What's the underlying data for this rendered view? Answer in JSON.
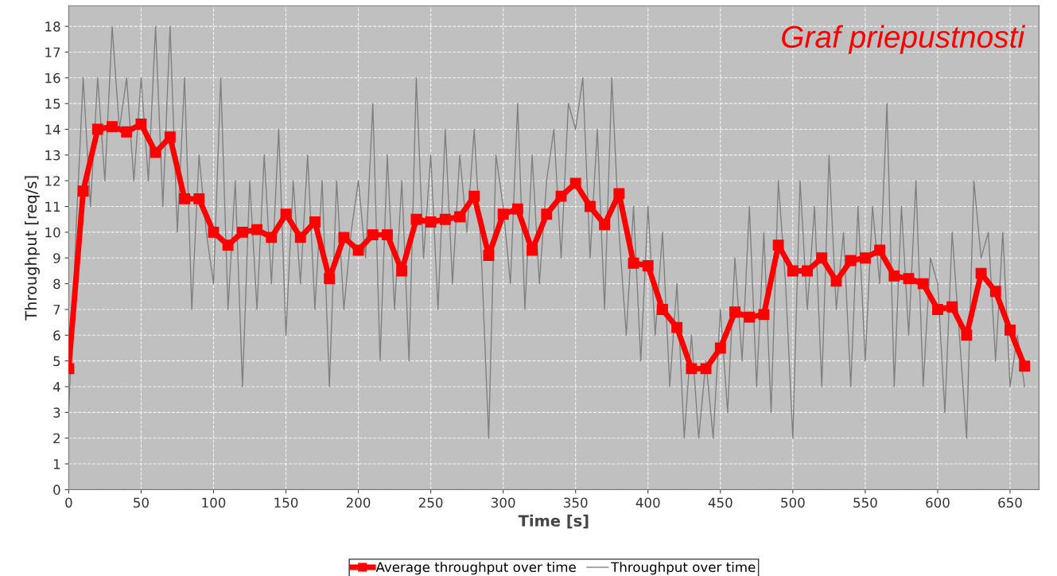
{
  "chart_data": {
    "type": "line",
    "title": "Graf priepustnosti",
    "xlabel": "Time [s]",
    "ylabel": "Throughput [req/s]",
    "xlim": [
      0,
      670
    ],
    "ylim": [
      0,
      18.8
    ],
    "xticks": [
      0,
      50,
      100,
      150,
      200,
      250,
      300,
      350,
      400,
      450,
      500,
      550,
      600,
      650
    ],
    "yticks": [
      0,
      1,
      2,
      3,
      4,
      5,
      6,
      7,
      8,
      9,
      10,
      11,
      12,
      13,
      14,
      15,
      16,
      17,
      18
    ],
    "grid": true,
    "legend": "bottom",
    "line_style": "solid",
    "series": [
      {
        "name": "Average throughput over time",
        "color": "#ff0000",
        "marker": "square",
        "x": [
          0,
          10,
          20,
          30,
          40,
          50,
          60,
          70,
          80,
          90,
          100,
          110,
          120,
          130,
          140,
          150,
          160,
          170,
          180,
          190,
          200,
          210,
          220,
          230,
          240,
          250,
          260,
          270,
          280,
          290,
          300,
          310,
          320,
          330,
          340,
          350,
          360,
          370,
          380,
          390,
          400,
          410,
          420,
          430,
          440,
          450,
          460,
          470,
          480,
          490,
          500,
          510,
          520,
          530,
          540,
          550,
          560,
          570,
          580,
          590,
          600,
          610,
          620,
          630,
          640,
          650,
          660
        ],
        "values": [
          4.7,
          11.6,
          14.0,
          14.1,
          13.9,
          14.2,
          13.1,
          13.7,
          11.3,
          11.3,
          10.0,
          9.5,
          10.0,
          10.1,
          9.8,
          10.7,
          9.8,
          10.4,
          8.2,
          9.8,
          9.3,
          9.9,
          9.9,
          8.5,
          10.5,
          10.4,
          10.5,
          10.6,
          11.4,
          9.1,
          10.7,
          10.9,
          9.3,
          10.7,
          11.4,
          11.9,
          11.0,
          10.3,
          11.5,
          8.8,
          8.7,
          7.0,
          6.3,
          4.7,
          4.7,
          5.5,
          6.9,
          6.7,
          6.8,
          9.5,
          8.5,
          8.5,
          9.0,
          8.1,
          8.9,
          9.0,
          9.3,
          8.3,
          8.2,
          8.0,
          7.0,
          7.1,
          6.0,
          8.4,
          7.7,
          6.2,
          4.8
        ]
      },
      {
        "name": "Throughput over time",
        "color": "#808080",
        "marker": "none",
        "x": [
          0,
          5,
          10,
          15,
          20,
          25,
          30,
          35,
          40,
          45,
          50,
          55,
          60,
          65,
          70,
          75,
          80,
          85,
          90,
          95,
          100,
          105,
          110,
          115,
          120,
          125,
          130,
          135,
          140,
          145,
          150,
          155,
          160,
          165,
          170,
          175,
          180,
          185,
          190,
          195,
          200,
          205,
          210,
          215,
          220,
          225,
          230,
          235,
          240,
          245,
          250,
          255,
          260,
          265,
          270,
          275,
          280,
          285,
          290,
          295,
          300,
          305,
          310,
          315,
          320,
          325,
          330,
          335,
          340,
          345,
          350,
          355,
          360,
          365,
          370,
          375,
          380,
          385,
          390,
          395,
          400,
          405,
          410,
          415,
          420,
          425,
          430,
          435,
          440,
          445,
          450,
          455,
          460,
          465,
          470,
          475,
          480,
          485,
          490,
          495,
          500,
          505,
          510,
          515,
          520,
          525,
          530,
          535,
          540,
          545,
          550,
          555,
          560,
          565,
          570,
          575,
          580,
          585,
          590,
          595,
          600,
          605,
          610,
          615,
          620,
          625,
          630,
          635,
          640,
          645,
          650,
          655,
          660
        ],
        "values": [
          3,
          10,
          16,
          11,
          16,
          12,
          18,
          14,
          16,
          12,
          16,
          12,
          18,
          11,
          18,
          10,
          16,
          7,
          13,
          10,
          8,
          16,
          7,
          12,
          4,
          12,
          7,
          13,
          8,
          14,
          6,
          12,
          8,
          13,
          7,
          12,
          4,
          12,
          7,
          10,
          12,
          9,
          15,
          5,
          13,
          7,
          12,
          5,
          16,
          9,
          13,
          7,
          14,
          8,
          13,
          10,
          14,
          9,
          2,
          13,
          11,
          8,
          15,
          7,
          13,
          8,
          12,
          14,
          9,
          15,
          14,
          16,
          9,
          14,
          7,
          16,
          10,
          6,
          11,
          5,
          11,
          6,
          10,
          4,
          8,
          2,
          6,
          2,
          5,
          2,
          7,
          3,
          9,
          5,
          11,
          4,
          10,
          3,
          12,
          8,
          2,
          12,
          7,
          11,
          4,
          13,
          7,
          10,
          4,
          11,
          5,
          11,
          8,
          15,
          4,
          11,
          6,
          12,
          4,
          9,
          8,
          3,
          10,
          6,
          2,
          12,
          9,
          10,
          5,
          10,
          4,
          6,
          4
        ]
      }
    ]
  }
}
